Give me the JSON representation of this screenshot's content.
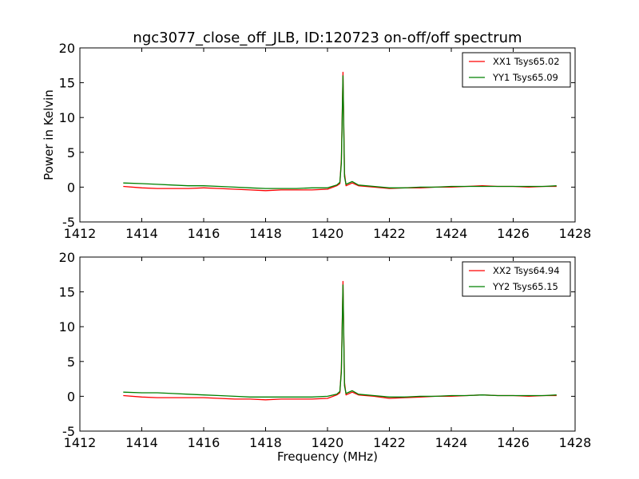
{
  "title": "ngc3077_close_off_JLB, ID:120723 on-off/off spectrum",
  "chart_data": [
    {
      "type": "line",
      "ylabel": "Power in Kelvin",
      "xlabel": "",
      "xlim": [
        1412,
        1428
      ],
      "ylim": [
        -5,
        20
      ],
      "xticks": [
        1412,
        1414,
        1416,
        1418,
        1420,
        1422,
        1424,
        1426,
        1428
      ],
      "yticks": [
        -5,
        0,
        5,
        10,
        15,
        20
      ],
      "legend_position": "top-right",
      "series": [
        {
          "name": "XX1 Tsys65.02",
          "color": "#ff0000",
          "x": [
            1413.4,
            1414.0,
            1414.5,
            1415.0,
            1415.5,
            1416.0,
            1416.5,
            1417.0,
            1417.5,
            1418.0,
            1418.5,
            1419.0,
            1419.5,
            1420.0,
            1420.3,
            1420.4,
            1420.45,
            1420.5,
            1420.55,
            1420.6,
            1420.8,
            1421.0,
            1421.5,
            1422.0,
            1422.5,
            1423.0,
            1423.5,
            1424.0,
            1424.5,
            1425.0,
            1425.5,
            1426.0,
            1426.5,
            1427.0,
            1427.4
          ],
          "y": [
            0.1,
            -0.1,
            -0.2,
            -0.2,
            -0.2,
            -0.1,
            -0.2,
            -0.3,
            -0.4,
            -0.5,
            -0.4,
            -0.4,
            -0.4,
            -0.3,
            0.2,
            0.5,
            4.0,
            16.5,
            2.0,
            0.2,
            0.6,
            0.2,
            0.0,
            -0.2,
            -0.1,
            -0.1,
            0.0,
            0.0,
            0.1,
            0.2,
            0.1,
            0.1,
            0.0,
            0.1,
            0.1
          ]
        },
        {
          "name": "YY1 Tsys65.09",
          "color": "#008000",
          "x": [
            1413.4,
            1414.0,
            1414.5,
            1415.0,
            1415.5,
            1416.0,
            1416.5,
            1417.0,
            1417.5,
            1418.0,
            1418.5,
            1419.0,
            1419.5,
            1420.0,
            1420.3,
            1420.4,
            1420.45,
            1420.5,
            1420.55,
            1420.6,
            1420.8,
            1421.0,
            1421.5,
            1422.0,
            1422.5,
            1423.0,
            1423.5,
            1424.0,
            1424.5,
            1425.0,
            1425.5,
            1426.0,
            1426.5,
            1427.0,
            1427.4
          ],
          "y": [
            0.6,
            0.5,
            0.4,
            0.3,
            0.2,
            0.2,
            0.1,
            0.0,
            -0.1,
            -0.2,
            -0.2,
            -0.2,
            -0.1,
            -0.1,
            0.3,
            0.7,
            3.5,
            16.0,
            1.5,
            0.4,
            0.8,
            0.3,
            0.1,
            -0.1,
            -0.1,
            0.0,
            0.0,
            0.1,
            0.1,
            0.1,
            0.1,
            0.1,
            0.1,
            0.1,
            0.2
          ]
        }
      ]
    },
    {
      "type": "line",
      "ylabel": "",
      "xlabel": "Frequency (MHz)",
      "xlim": [
        1412,
        1428
      ],
      "ylim": [
        -5,
        20
      ],
      "xticks": [
        1412,
        1414,
        1416,
        1418,
        1420,
        1422,
        1424,
        1426,
        1428
      ],
      "yticks": [
        -5,
        0,
        5,
        10,
        15,
        20
      ],
      "legend_position": "top-right",
      "series": [
        {
          "name": "XX2 Tsys64.94",
          "color": "#ff0000",
          "x": [
            1413.4,
            1414.0,
            1414.5,
            1415.0,
            1415.5,
            1416.0,
            1416.5,
            1417.0,
            1417.5,
            1418.0,
            1418.5,
            1419.0,
            1419.5,
            1420.0,
            1420.3,
            1420.4,
            1420.45,
            1420.5,
            1420.55,
            1420.6,
            1420.8,
            1421.0,
            1421.5,
            1422.0,
            1422.5,
            1423.0,
            1423.5,
            1424.0,
            1424.5,
            1425.0,
            1425.5,
            1426.0,
            1426.5,
            1427.0,
            1427.4
          ],
          "y": [
            0.1,
            -0.1,
            -0.2,
            -0.2,
            -0.2,
            -0.2,
            -0.3,
            -0.4,
            -0.4,
            -0.5,
            -0.4,
            -0.4,
            -0.4,
            -0.3,
            0.2,
            0.5,
            4.0,
            16.5,
            2.0,
            0.2,
            0.6,
            0.2,
            0.0,
            -0.3,
            -0.2,
            -0.1,
            0.0,
            0.0,
            0.1,
            0.2,
            0.1,
            0.1,
            0.0,
            0.1,
            0.1
          ]
        },
        {
          "name": "YY2 Tsys65.15",
          "color": "#008000",
          "x": [
            1413.4,
            1414.0,
            1414.5,
            1415.0,
            1415.5,
            1416.0,
            1416.5,
            1417.0,
            1417.5,
            1418.0,
            1418.5,
            1419.0,
            1419.5,
            1420.0,
            1420.3,
            1420.4,
            1420.45,
            1420.5,
            1420.55,
            1420.6,
            1420.8,
            1421.0,
            1421.5,
            1422.0,
            1422.5,
            1423.0,
            1423.5,
            1424.0,
            1424.5,
            1425.0,
            1425.5,
            1426.0,
            1426.5,
            1427.0,
            1427.4
          ],
          "y": [
            0.6,
            0.5,
            0.5,
            0.4,
            0.3,
            0.2,
            0.1,
            0.0,
            -0.1,
            -0.1,
            -0.1,
            -0.1,
            -0.1,
            0.0,
            0.3,
            0.7,
            3.5,
            16.0,
            1.5,
            0.4,
            0.8,
            0.3,
            0.1,
            -0.1,
            -0.1,
            0.0,
            0.0,
            0.1,
            0.1,
            0.2,
            0.1,
            0.1,
            0.1,
            0.1,
            0.2
          ]
        }
      ]
    }
  ]
}
